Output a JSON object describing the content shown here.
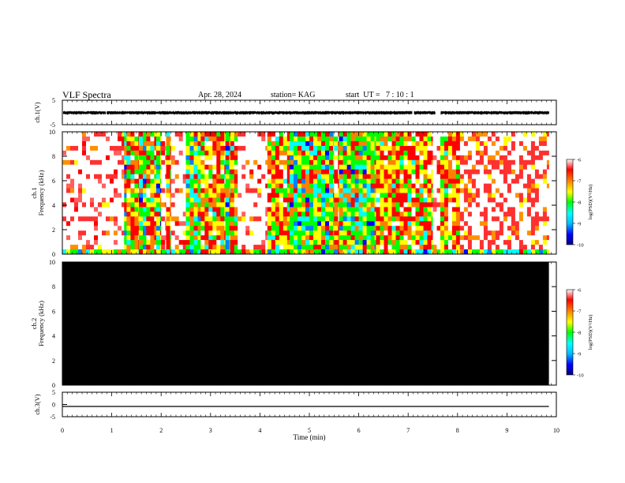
{
  "header": {
    "title": "VLF Spectra",
    "date": "Apr. 28, 2024",
    "station": "station= KAG",
    "start": "start  UT =   7 : 10 : 1"
  },
  "chart_data": [
    {
      "type": "line",
      "panel": "ch1-waveform",
      "ylabel": "ch.1(V)",
      "ylim": [
        -5,
        5
      ],
      "yticks": [
        "5",
        "-5"
      ],
      "xlim": [
        0,
        10
      ],
      "data_end_min": 9.85,
      "series": [
        {
          "values": "noisy waveform approx. between -0.9 V and +0.6 V with gaps near 0.9, 7.1, 7.6 and 7.65 min"
        }
      ],
      "color": "#000000"
    },
    {
      "type": "heatmap",
      "panel": "ch1-spectrogram",
      "ylabel": "ch.1\nFrequency (kHz)",
      "ylim": [
        0,
        10
      ],
      "yticks": [
        "0",
        "2",
        "4",
        "6",
        "8",
        "10"
      ],
      "xlim": [
        0,
        10
      ],
      "colorbar": {
        "label": "log(PSD)(V²/Hz)",
        "range": [
          -10,
          -6
        ],
        "ticks": [
          "-6",
          "-7",
          "-8",
          "-9",
          "-10"
        ]
      },
      "segments": [
        {
          "start": 0.0,
          "end": 1.25,
          "level": "low"
        },
        {
          "start": 1.25,
          "end": 1.3,
          "level": "high"
        },
        {
          "start": 1.3,
          "end": 1.55,
          "level": "mid"
        },
        {
          "start": 1.55,
          "end": 1.7,
          "level": "high"
        },
        {
          "start": 1.7,
          "end": 1.9,
          "level": "mid"
        },
        {
          "start": 1.9,
          "end": 2.0,
          "level": "high"
        },
        {
          "start": 2.0,
          "end": 2.1,
          "level": "low"
        },
        {
          "start": 2.1,
          "end": 2.2,
          "level": "mid"
        },
        {
          "start": 2.2,
          "end": 2.5,
          "level": "low"
        },
        {
          "start": 2.5,
          "end": 2.8,
          "level": "high"
        },
        {
          "start": 2.8,
          "end": 3.3,
          "level": "mid"
        },
        {
          "start": 3.3,
          "end": 3.4,
          "level": "high"
        },
        {
          "start": 3.4,
          "end": 3.55,
          "level": "mid"
        },
        {
          "start": 3.55,
          "end": 4.15,
          "level": "low"
        },
        {
          "start": 4.15,
          "end": 4.6,
          "level": "mid"
        },
        {
          "start": 4.6,
          "end": 5.5,
          "level": "high"
        },
        {
          "start": 5.5,
          "end": 5.6,
          "level": "mid"
        },
        {
          "start": 5.6,
          "end": 6.35,
          "level": "high"
        },
        {
          "start": 6.35,
          "end": 7.5,
          "level": "mid"
        },
        {
          "start": 7.5,
          "end": 7.65,
          "level": "low"
        },
        {
          "start": 7.65,
          "end": 8.05,
          "level": "mid"
        },
        {
          "start": 8.05,
          "end": 9.85,
          "level": "lowmid"
        }
      ]
    },
    {
      "type": "heatmap",
      "panel": "ch2-spectrogram",
      "ylabel": "ch.2\nFrequency (kHz)",
      "ylim": [
        0,
        10
      ],
      "yticks": [
        "0",
        "2",
        "4",
        "6",
        "8",
        "10"
      ],
      "xlim": [
        0,
        10
      ],
      "fill": "#000000",
      "colorbar": {
        "label": "log(PSD)(V²/Hz)",
        "range": [
          -10,
          -6
        ],
        "ticks": [
          "-6",
          "-7",
          "-8",
          "-9",
          "-10"
        ]
      }
    },
    {
      "type": "line",
      "panel": "ch3-waveform",
      "ylabel": "ch.3(V)",
      "ylim": [
        -5,
        5
      ],
      "yticks": [
        "5",
        "0",
        "-5"
      ],
      "xlim": [
        0,
        10
      ],
      "xlabel": "Time (min)",
      "xticks": [
        "0",
        "1",
        "2",
        "3",
        "4",
        "5",
        "6",
        "7",
        "8",
        "9",
        "10"
      ],
      "series": [
        {
          "x": [
            0.0,
            9.85
          ],
          "values": [
            -0.8,
            -0.8
          ]
        }
      ],
      "color": "#000000"
    }
  ]
}
